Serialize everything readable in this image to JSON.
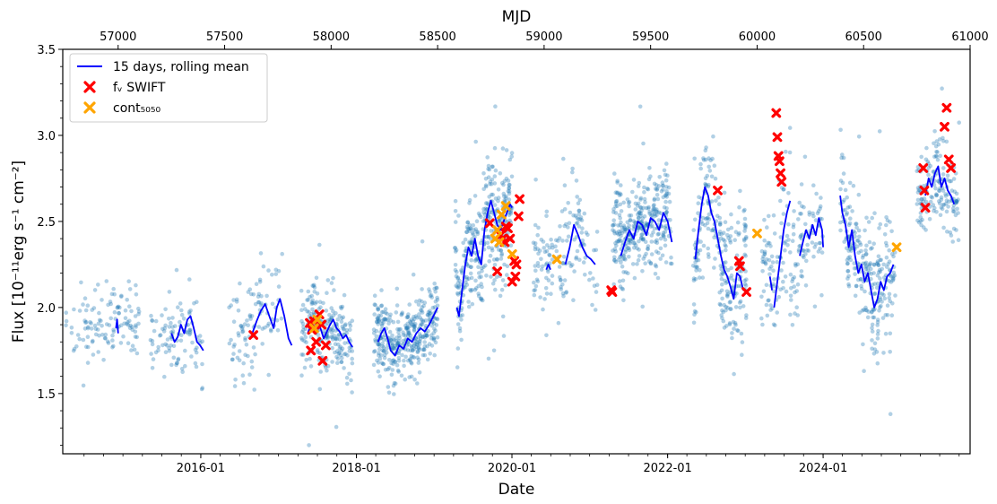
{
  "chart_data": {
    "type": "scatter",
    "title": "",
    "xlabel": "Date",
    "ylabel": "Flux [10⁻¹¹erg s⁻¹ cm⁻²]",
    "top_xlabel": "MJD",
    "ylim": [
      1.15,
      3.5
    ],
    "mjd_range": [
      56740,
      61000
    ],
    "y_ticks": [
      {
        "value": 1.5,
        "label": "1.5"
      },
      {
        "value": 2.0,
        "label": "2.0"
      },
      {
        "value": 2.5,
        "label": "2.5"
      },
      {
        "value": 3.0,
        "label": "3.0"
      },
      {
        "value": 3.5,
        "label": "3.5"
      }
    ],
    "date_ticks": [
      {
        "mjd": 57388,
        "label": "2016-01"
      },
      {
        "mjd": 58119,
        "label": "2018-01"
      },
      {
        "mjd": 58849,
        "label": "2020-01"
      },
      {
        "mjd": 59580,
        "label": "2022-01"
      },
      {
        "mjd": 60310,
        "label": "2024-01"
      }
    ],
    "mjd_ticks": [
      {
        "mjd": 57000,
        "label": "57000"
      },
      {
        "mjd": 57500,
        "label": "57500"
      },
      {
        "mjd": 58000,
        "label": "58000"
      },
      {
        "mjd": 58500,
        "label": "58500"
      },
      {
        "mjd": 59000,
        "label": "59000"
      },
      {
        "mjd": 59500,
        "label": "59500"
      },
      {
        "mjd": 60000,
        "label": "60000"
      },
      {
        "mjd": 60500,
        "label": "60500"
      },
      {
        "mjd": 61000,
        "label": "61000"
      }
    ],
    "legend": {
      "location": "top-left",
      "entries": [
        {
          "label": "15 days, rolling mean",
          "marker": "line",
          "color": "#0000ff"
        },
        {
          "label": "fᵥ SWIFT",
          "marker": "x",
          "color": "#ff0000"
        },
        {
          "label": "cont₅₀₅₀",
          "marker": "x",
          "color": "#ffa500"
        }
      ]
    },
    "colors": {
      "obs": "#1f77b4",
      "rolling": "#0000ff",
      "swift": "#ff0000",
      "cont": "#ffa500"
    },
    "series": [
      {
        "name": "observations",
        "type": "scatter",
        "segments": [
          {
            "start": 56750,
            "end": 57100,
            "mean": 1.9,
            "spread": 0.15,
            "density": 0.35
          },
          {
            "start": 57150,
            "end": 57400,
            "mean": 1.85,
            "spread": 0.15,
            "density": 0.4
          },
          {
            "start": 57520,
            "end": 57770,
            "mean": 1.85,
            "spread": 0.2,
            "density": 0.4
          },
          {
            "start": 57860,
            "end": 58100,
            "mean": 1.85,
            "spread": 0.16,
            "density": 0.9
          },
          {
            "start": 58200,
            "end": 58500,
            "mean": 1.85,
            "spread": 0.14,
            "density": 1.2
          },
          {
            "start": 58580,
            "end": 58850,
            "mean": 2.35,
            "spread": 0.22,
            "density": 1.3
          },
          {
            "start": 58950,
            "end": 59250,
            "mean": 2.25,
            "spread": 0.2,
            "density": 0.5
          },
          {
            "start": 59320,
            "end": 59600,
            "mean": 2.45,
            "spread": 0.18,
            "density": 1.2
          },
          {
            "start": 59700,
            "end": 59950,
            "mean": 2.3,
            "spread": 0.25,
            "density": 1.0
          },
          {
            "start": 60020,
            "end": 60310,
            "mean": 2.3,
            "spread": 0.25,
            "density": 0.6
          },
          {
            "start": 60390,
            "end": 60650,
            "mean": 2.2,
            "spread": 0.22,
            "density": 1.0
          },
          {
            "start": 60750,
            "end": 60950,
            "mean": 2.65,
            "spread": 0.17,
            "density": 0.8
          }
        ]
      },
      {
        "name": "15 days, rolling mean",
        "type": "line",
        "segments": [
          [
            [
              56990,
              1.88
            ],
            [
              56995,
              1.93
            ],
            [
              57000,
              1.85
            ]
          ],
          [
            [
              57250,
              1.85
            ],
            [
              57265,
              1.8
            ],
            [
              57280,
              1.83
            ],
            [
              57295,
              1.9
            ],
            [
              57310,
              1.85
            ],
            [
              57325,
              1.93
            ],
            [
              57340,
              1.95
            ],
            [
              57355,
              1.88
            ],
            [
              57370,
              1.8
            ],
            [
              57385,
              1.78
            ],
            [
              57400,
              1.75
            ]
          ],
          [
            [
              57630,
              1.85
            ],
            [
              57650,
              1.92
            ],
            [
              57670,
              1.98
            ],
            [
              57690,
              2.02
            ],
            [
              57710,
              1.95
            ],
            [
              57730,
              1.88
            ],
            [
              57745,
              2.0
            ],
            [
              57760,
              2.05
            ],
            [
              57780,
              1.95
            ],
            [
              57800,
              1.82
            ],
            [
              57815,
              1.78
            ]
          ],
          [
            [
              57890,
              1.85
            ],
            [
              57905,
              1.9
            ],
            [
              57920,
              1.95
            ],
            [
              57935,
              1.92
            ],
            [
              57950,
              1.88
            ],
            [
              57965,
              1.82
            ],
            [
              57980,
              1.86
            ],
            [
              57995,
              1.9
            ],
            [
              58010,
              1.93
            ],
            [
              58025,
              1.88
            ],
            [
              58040,
              1.86
            ],
            [
              58055,
              1.82
            ],
            [
              58070,
              1.84
            ],
            [
              58085,
              1.8
            ],
            [
              58100,
              1.77
            ]
          ],
          [
            [
              58220,
              1.8
            ],
            [
              58235,
              1.85
            ],
            [
              58250,
              1.88
            ],
            [
              58265,
              1.82
            ],
            [
              58280,
              1.75
            ],
            [
              58300,
              1.72
            ],
            [
              58320,
              1.78
            ],
            [
              58340,
              1.76
            ],
            [
              58360,
              1.82
            ],
            [
              58380,
              1.8
            ],
            [
              58400,
              1.85
            ],
            [
              58420,
              1.88
            ],
            [
              58440,
              1.86
            ],
            [
              58460,
              1.9
            ],
            [
              58480,
              1.95
            ],
            [
              58500,
              2.0
            ]
          ],
          [
            [
              58590,
              2.0
            ],
            [
              58600,
              1.95
            ],
            [
              58615,
              2.1
            ],
            [
              58630,
              2.25
            ],
            [
              58645,
              2.35
            ],
            [
              58660,
              2.3
            ],
            [
              58675,
              2.4
            ],
            [
              58690,
              2.3
            ],
            [
              58705,
              2.25
            ],
            [
              58720,
              2.45
            ],
            [
              58735,
              2.55
            ],
            [
              58750,
              2.62
            ],
            [
              58765,
              2.55
            ],
            [
              58780,
              2.48
            ],
            [
              58795,
              2.45
            ],
            [
              58810,
              2.5
            ],
            [
              58825,
              2.55
            ],
            [
              58840,
              2.6
            ],
            [
              58850,
              2.58
            ]
          ],
          [
            [
              59010,
              2.22
            ],
            [
              59020,
              2.25
            ],
            [
              59030,
              2.22
            ]
          ],
          [
            [
              59100,
              2.25
            ],
            [
              59120,
              2.35
            ],
            [
              59140,
              2.48
            ],
            [
              59160,
              2.42
            ],
            [
              59180,
              2.35
            ],
            [
              59200,
              2.3
            ],
            [
              59220,
              2.28
            ],
            [
              59240,
              2.25
            ]
          ],
          [
            [
              59360,
              2.3
            ],
            [
              59380,
              2.38
            ],
            [
              59400,
              2.45
            ],
            [
              59420,
              2.4
            ],
            [
              59440,
              2.5
            ],
            [
              59460,
              2.48
            ],
            [
              59480,
              2.42
            ],
            [
              59500,
              2.52
            ],
            [
              59520,
              2.5
            ],
            [
              59540,
              2.45
            ],
            [
              59560,
              2.55
            ],
            [
              59580,
              2.5
            ],
            [
              59600,
              2.38
            ]
          ],
          [
            [
              59710,
              2.28
            ],
            [
              59725,
              2.45
            ],
            [
              59740,
              2.6
            ],
            [
              59755,
              2.7
            ],
            [
              59770,
              2.65
            ],
            [
              59785,
              2.55
            ],
            [
              59800,
              2.5
            ],
            [
              59815,
              2.4
            ],
            [
              59830,
              2.3
            ],
            [
              59845,
              2.22
            ],
            [
              59860,
              2.18
            ],
            [
              59875,
              2.12
            ],
            [
              59890,
              2.05
            ],
            [
              59905,
              2.2
            ],
            [
              59920,
              2.18
            ],
            [
              59935,
              2.1
            ]
          ],
          [
            [
              60060,
              2.18
            ],
            [
              60070,
              2.1
            ]
          ],
          [
            [
              60080,
              2.0
            ],
            [
              60095,
              2.15
            ],
            [
              60110,
              2.3
            ],
            [
              60125,
              2.45
            ],
            [
              60140,
              2.55
            ],
            [
              60155,
              2.62
            ]
          ],
          [
            [
              60200,
              2.3
            ],
            [
              60215,
              2.38
            ],
            [
              60230,
              2.45
            ],
            [
              60245,
              2.4
            ],
            [
              60260,
              2.48
            ],
            [
              60275,
              2.42
            ],
            [
              60290,
              2.52
            ],
            [
              60305,
              2.45
            ],
            [
              60310,
              2.35
            ]
          ],
          [
            [
              60390,
              2.65
            ],
            [
              60400,
              2.55
            ],
            [
              60415,
              2.48
            ],
            [
              60430,
              2.35
            ],
            [
              60445,
              2.45
            ],
            [
              60460,
              2.3
            ],
            [
              60475,
              2.2
            ],
            [
              60490,
              2.25
            ],
            [
              60505,
              2.15
            ],
            [
              60520,
              2.2
            ],
            [
              60535,
              2.1
            ],
            [
              60550,
              2.0
            ],
            [
              60565,
              2.05
            ],
            [
              60580,
              2.15
            ],
            [
              60595,
              2.1
            ],
            [
              60610,
              2.18
            ],
            [
              60625,
              2.2
            ],
            [
              60640,
              2.25
            ]
          ],
          [
            [
              60790,
              2.65
            ],
            [
              60805,
              2.75
            ],
            [
              60820,
              2.7
            ],
            [
              60835,
              2.78
            ],
            [
              60850,
              2.82
            ],
            [
              60865,
              2.7
            ],
            [
              60880,
              2.75
            ],
            [
              60895,
              2.68
            ],
            [
              60910,
              2.65
            ],
            [
              60925,
              2.6
            ]
          ]
        ]
      },
      {
        "name": "fᵥ SWIFT",
        "type": "scatter",
        "points": [
          [
            57635,
            1.84
          ],
          [
            57900,
            1.91
          ],
          [
            57905,
            1.75
          ],
          [
            57910,
            1.87
          ],
          [
            57920,
            1.92
          ],
          [
            57930,
            1.8
          ],
          [
            57945,
            1.96
          ],
          [
            57955,
            1.9
          ],
          [
            57960,
            1.69
          ],
          [
            57975,
            1.78
          ],
          [
            58745,
            2.49
          ],
          [
            58780,
            2.21
          ],
          [
            58795,
            2.42
          ],
          [
            58805,
            2.4
          ],
          [
            58815,
            2.38
          ],
          [
            58820,
            2.47
          ],
          [
            58830,
            2.46
          ],
          [
            58840,
            2.4
          ],
          [
            58850,
            2.15
          ],
          [
            58860,
            2.27
          ],
          [
            58865,
            2.18
          ],
          [
            58870,
            2.25
          ],
          [
            58880,
            2.53
          ],
          [
            58885,
            2.63
          ],
          [
            59315,
            2.1
          ],
          [
            59320,
            2.09
          ],
          [
            59815,
            2.68
          ],
          [
            59915,
            2.27
          ],
          [
            59920,
            2.24
          ],
          [
            59950,
            2.09
          ],
          [
            60090,
            3.13
          ],
          [
            60095,
            2.99
          ],
          [
            60100,
            2.88
          ],
          [
            60105,
            2.85
          ],
          [
            60110,
            2.78
          ],
          [
            60115,
            2.73
          ],
          [
            60780,
            2.81
          ],
          [
            60785,
            2.68
          ],
          [
            60790,
            2.58
          ],
          [
            60880,
            3.05
          ],
          [
            60890,
            3.16
          ],
          [
            60900,
            2.86
          ],
          [
            60910,
            2.81
          ]
        ]
      },
      {
        "name": "cont₅₀₅₀",
        "type": "scatter",
        "points": [
          [
            57920,
            1.88
          ],
          [
            57935,
            1.93
          ],
          [
            58770,
            2.4
          ],
          [
            58780,
            2.45
          ],
          [
            58790,
            2.38
          ],
          [
            58800,
            2.54
          ],
          [
            58820,
            2.59
          ],
          [
            58850,
            2.31
          ],
          [
            59060,
            2.28
          ],
          [
            60000,
            2.43
          ],
          [
            60655,
            2.35
          ]
        ]
      }
    ]
  }
}
